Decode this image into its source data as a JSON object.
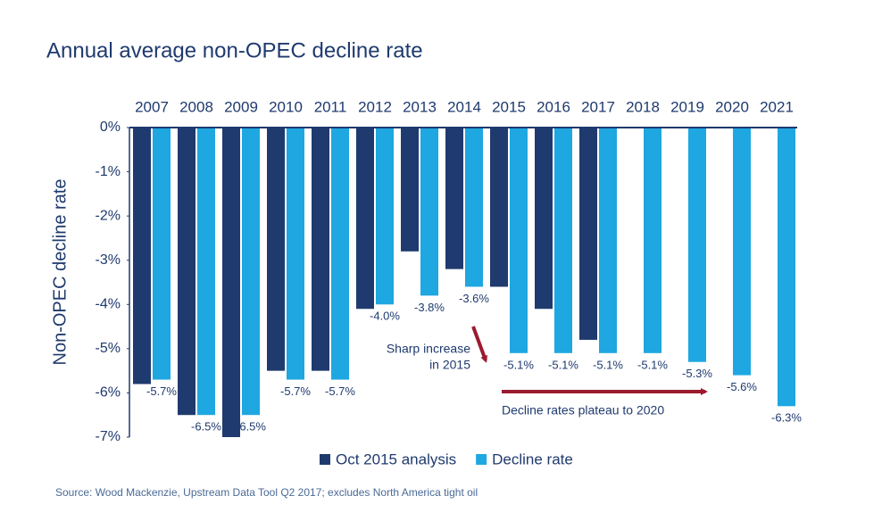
{
  "chart_data": {
    "type": "bar",
    "title": "Annual average non-OPEC decline rate",
    "y_label": "Non-OPEC decline rate",
    "source": "Source: Wood Mackenzie, Upstream Data Tool Q2 2017; excludes North America tight oil",
    "categories": [
      "2007",
      "2008",
      "2009",
      "2010",
      "2011",
      "2012",
      "2013",
      "2014",
      "2015",
      "2016",
      "2017",
      "2018",
      "2019",
      "2020",
      "2021"
    ],
    "series": [
      {
        "name": "Oct 2015 analysis",
        "color": "#1f3a6e",
        "values": [
          -5.8,
          -6.5,
          -7.0,
          -5.5,
          -5.5,
          -4.1,
          -2.8,
          -3.2,
          -3.6,
          -4.1,
          -4.8,
          null,
          null,
          null,
          null
        ]
      },
      {
        "name": "Decline rate",
        "color": "#1ea7e1",
        "values": [
          -5.7,
          -6.5,
          -6.5,
          -5.7,
          -5.7,
          -4.0,
          -3.8,
          -3.6,
          -5.1,
          -5.1,
          -5.1,
          -5.1,
          -5.3,
          -5.6,
          -6.3
        ],
        "value_labels": [
          "-5.7%",
          "-6.5%",
          "-6.5%",
          "-5.7%",
          "-5.7%",
          "-4.0%",
          "-3.8%",
          "-3.6%",
          "-5.1%",
          "-5.1%",
          "-5.1%",
          "-5.1%",
          "-5.3%",
          "-5.6%",
          "-6.3%"
        ]
      }
    ],
    "ylim": [
      0,
      -7
    ],
    "yticks": [
      {
        "value": 0,
        "label": "0%"
      },
      {
        "value": -1,
        "label": "-1%"
      },
      {
        "value": -2,
        "label": "-2%"
      },
      {
        "value": -3,
        "label": "-3%"
      },
      {
        "value": -4,
        "label": "-4%"
      },
      {
        "value": -5,
        "label": "-5%"
      },
      {
        "value": -6,
        "label": "-6%"
      },
      {
        "value": -7,
        "label": "-7%"
      }
    ],
    "annotations": [
      {
        "lines": [
          "Sharp increase",
          "in 2015"
        ]
      },
      {
        "lines": [
          "Decline rates plateau to 2020"
        ]
      }
    ],
    "legend": "bottom"
  }
}
